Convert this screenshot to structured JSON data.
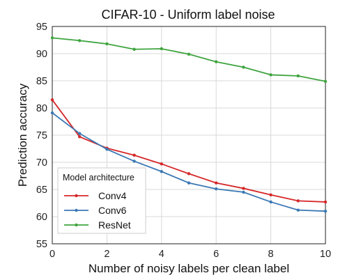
{
  "chart_data": {
    "type": "line",
    "title": "CIFAR-10 - Uniform label noise",
    "xlabel": "Number of noisy labels per clean label",
    "ylabel": "Prediction accuracy",
    "xlim": [
      0,
      10
    ],
    "ylim": [
      55,
      95
    ],
    "xticks": [
      0,
      2,
      4,
      6,
      8,
      10
    ],
    "yticks": [
      55,
      60,
      65,
      70,
      75,
      80,
      85,
      90,
      95
    ],
    "grid": true,
    "legend": {
      "title": "Model architecture",
      "position": "lower-left"
    },
    "x": [
      0,
      1,
      2,
      3,
      4,
      5,
      6,
      7,
      8,
      9,
      10
    ],
    "series": [
      {
        "name": "Conv4",
        "color": "#d62728",
        "values": [
          81.5,
          74.7,
          72.6,
          71.3,
          69.7,
          67.9,
          66.2,
          65.2,
          64.0,
          62.9,
          62.7
        ]
      },
      {
        "name": "Conv6",
        "color": "#3a78b4",
        "values": [
          79.1,
          75.3,
          72.4,
          70.2,
          68.3,
          66.2,
          65.1,
          64.5,
          62.7,
          61.2,
          61.0
        ]
      },
      {
        "name": "ResNet",
        "color": "#3ea43e",
        "values": [
          92.9,
          92.4,
          91.8,
          90.8,
          90.9,
          89.9,
          88.5,
          87.5,
          86.1,
          85.9,
          84.9
        ]
      }
    ]
  }
}
